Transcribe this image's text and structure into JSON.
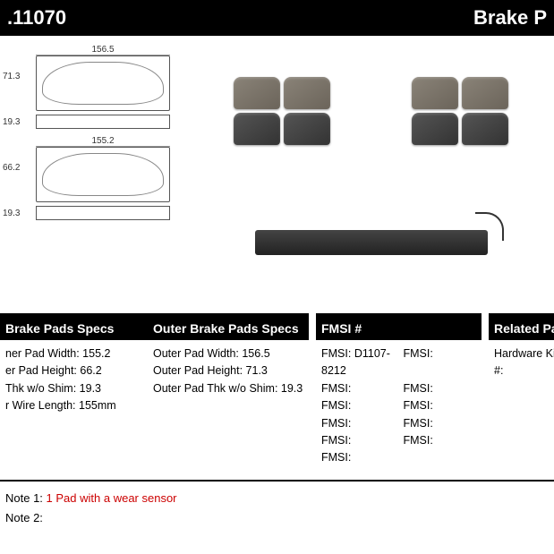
{
  "header": {
    "left": ".11070",
    "right": "Brake P"
  },
  "diagram": {
    "outer": {
      "width": "156.5",
      "height": "71.3",
      "thk": "19.3"
    },
    "inner": {
      "width": "155.2",
      "height": "66.2",
      "thk": "19.3"
    }
  },
  "inner_specs": {
    "title": "Brake Pads Specs",
    "rows": [
      {
        "label": "ner Pad Width:",
        "value": "155.2"
      },
      {
        "label": "er Pad Height:",
        "value": "66.2"
      },
      {
        "label": "Thk w/o Shim:",
        "value": "19.3"
      },
      {
        "label": "r Wire Length:",
        "value": "155mm"
      }
    ]
  },
  "outer_specs": {
    "title": "Outer Brake Pads Specs",
    "rows": [
      {
        "label": "Outer Pad Width:",
        "value": "156.5"
      },
      {
        "label": "Outer Pad Height:",
        "value": "71.3"
      },
      {
        "label": "Outer Pad Thk w/o Shim:",
        "value": "19.3"
      }
    ]
  },
  "fmsi": {
    "title": "FMSI #",
    "l0": "FMSI:",
    "v0": "D1107-8212",
    "l1": "FMSI:",
    "l2": "FMSI:",
    "l3": "FMSI:",
    "l4": "FMSI:",
    "l5": "FMSI:",
    "r0": "FMSI:",
    "r1": "FMSI:",
    "r2": "FMSI:",
    "r3": "FMSI:",
    "r4": "FMSI:"
  },
  "related": {
    "title": "Related Par",
    "row0": "Hardware Kit #:"
  },
  "notes": {
    "n1_label": "Note 1:",
    "n1_text": "1 Pad with a wear sensor",
    "n2_label": "Note 2:"
  }
}
